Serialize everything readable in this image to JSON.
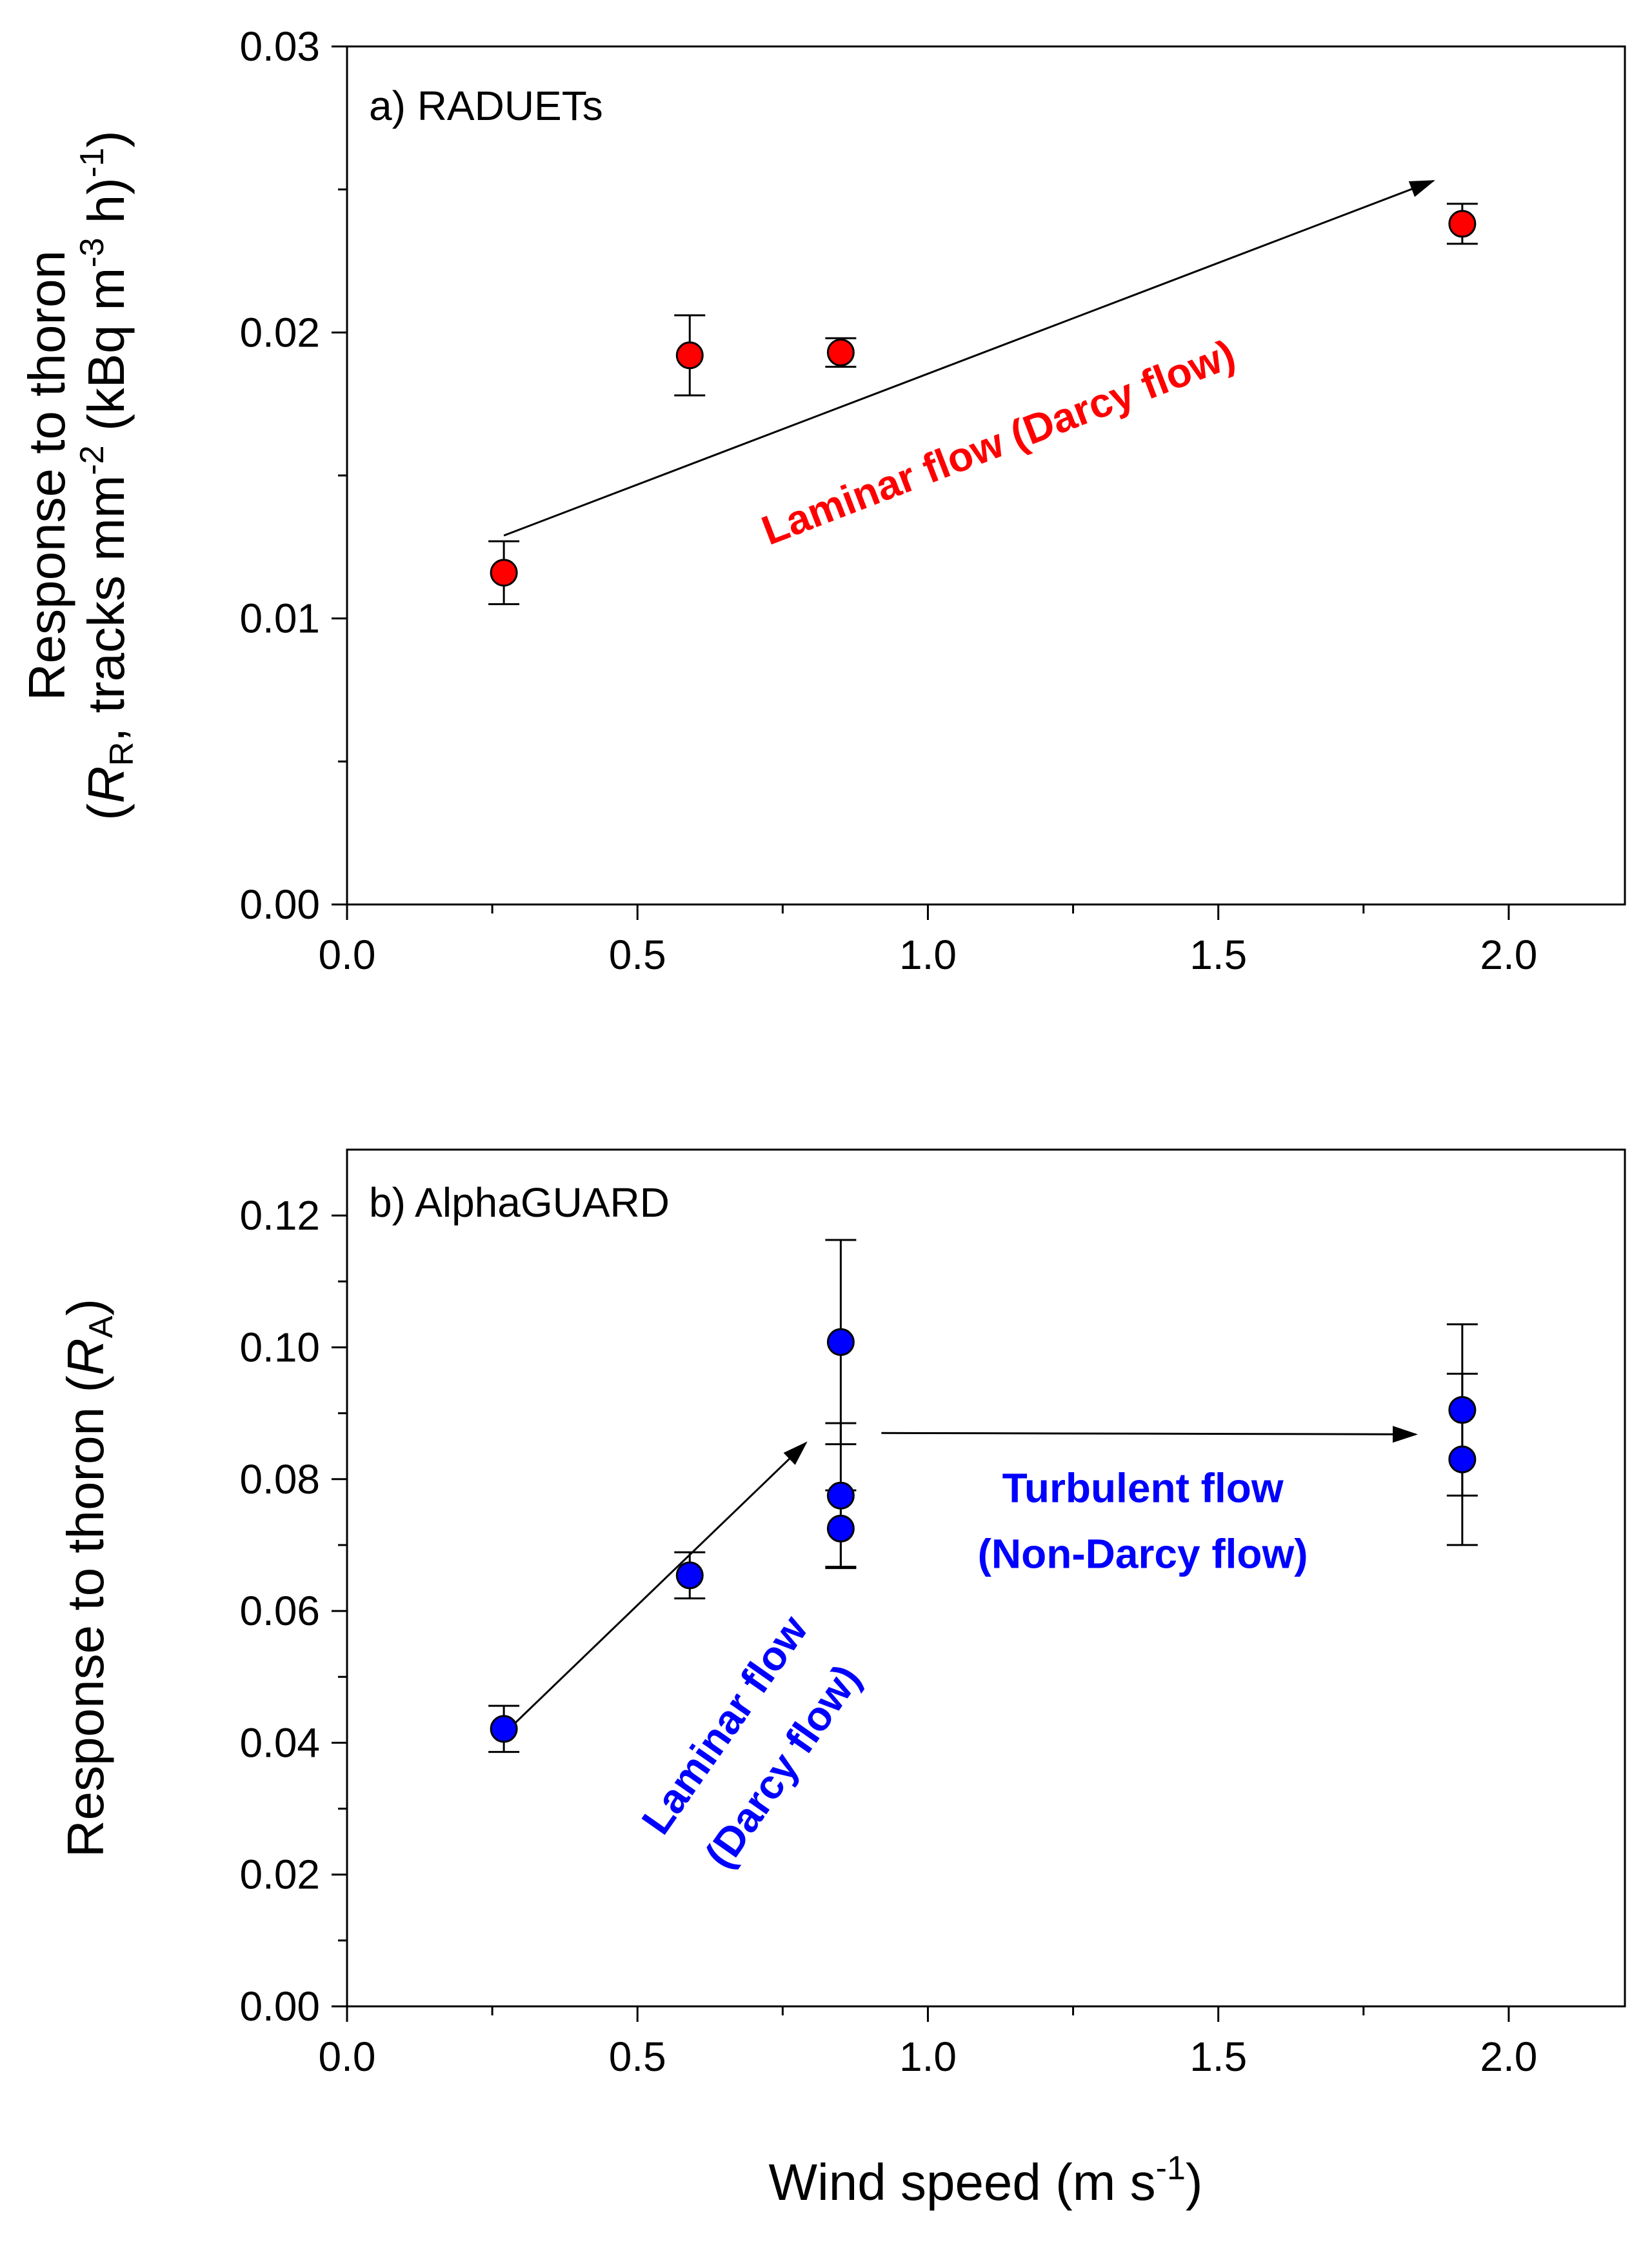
{
  "chart_data": [
    {
      "type": "scatter",
      "panel_label": "a) RADUETs",
      "xlabel": "",
      "ylabel_line1": "Response to thoron",
      "ylabel_line2": {
        "open": "(",
        "R": "R",
        "R_sub": "R",
        "mid": ", tracks mm",
        "sup1": "-2",
        "mid2": " (kBq m",
        "sup2": "-3",
        "mid3": " h)",
        "sup3": "-1",
        "close": ")"
      },
      "xlim": [
        0.0,
        2.2
      ],
      "ylim": [
        0.0,
        0.03
      ],
      "xticks": [
        0.0,
        0.5,
        1.0,
        1.5,
        2.0
      ],
      "xtick_labels": [
        "0.0",
        "0.5",
        "1.0",
        "1.5",
        "2.0"
      ],
      "yticks": [
        0.0,
        0.01,
        0.02,
        0.03
      ],
      "ytick_labels": [
        "0.00",
        "0.01",
        "0.02",
        "0.03"
      ],
      "marker_color": "#ff0000",
      "points": [
        {
          "x": 0.27,
          "y": 0.0116,
          "err": 0.0011
        },
        {
          "x": 0.59,
          "y": 0.0192,
          "err": 0.0014
        },
        {
          "x": 0.85,
          "y": 0.0193,
          "err": 0.0005
        },
        {
          "x": 1.92,
          "y": 0.0238,
          "err": 0.0007
        }
      ],
      "arrows": [
        {
          "from": [
            0.27,
            0.0129
          ],
          "to": [
            1.87,
            0.0253
          ]
        }
      ],
      "annotations": [
        {
          "text": "Laminar flow (Darcy flow)",
          "x": 1.13,
          "y": 0.0157,
          "rotate": -21,
          "color": "#ff0000"
        }
      ]
    },
    {
      "type": "scatter",
      "panel_label": "b) AlphaGUARD",
      "xlabel": "Wind speed (m s",
      "xlabel_sup": "-1",
      "xlabel_close": ")",
      "ylabel_line1": "Response to thoron (",
      "ylabel_R": "R",
      "ylabel_sub": "A",
      "ylabel_close": ")",
      "xlim": [
        0.0,
        2.2
      ],
      "ylim": [
        0.0,
        0.13
      ],
      "xticks": [
        0.0,
        0.5,
        1.0,
        1.5,
        2.0
      ],
      "xtick_labels": [
        "0.0",
        "0.5",
        "1.0",
        "1.5",
        "2.0"
      ],
      "yticks": [
        0.0,
        0.02,
        0.04,
        0.06,
        0.08,
        0.1,
        0.12
      ],
      "ytick_labels": [
        "0.00",
        "0.02",
        "0.04",
        "0.06",
        "0.08",
        "0.10",
        "0.12"
      ],
      "marker_color": "#0000ff",
      "points": [
        {
          "x": 0.27,
          "y": 0.0421,
          "err": 0.0035
        },
        {
          "x": 0.59,
          "y": 0.0654,
          "err": 0.0035
        },
        {
          "x": 0.85,
          "y": 0.1008,
          "err": 0.0155
        },
        {
          "x": 0.85,
          "y": 0.0775,
          "err": 0.011
        },
        {
          "x": 0.85,
          "y": 0.0725,
          "err": 0.0058
        },
        {
          "x": 1.92,
          "y": 0.0905,
          "err": 0.013
        },
        {
          "x": 1.92,
          "y": 0.083,
          "err": 0.013
        }
      ],
      "arrows": [
        {
          "from": [
            0.28,
            0.0422
          ],
          "to": [
            0.79,
            0.0855
          ]
        },
        {
          "from": [
            0.92,
            0.087
          ],
          "to": [
            1.84,
            0.0868
          ]
        }
      ],
      "annotations": [
        {
          "text": "Laminar flow",
          "x": 0.67,
          "y": 0.0415,
          "rotate": -55,
          "color": "#0000ff"
        },
        {
          "text": "(Darcy flow)",
          "x": 0.77,
          "y": 0.0352,
          "rotate": -55,
          "color": "#0000ff"
        },
        {
          "text": "Turbulent flow",
          "x": 1.37,
          "y": 0.0765,
          "rotate": 0,
          "color": "#0000ff"
        },
        {
          "text": "(Non-Darcy flow)",
          "x": 1.37,
          "y": 0.0665,
          "rotate": 0,
          "color": "#0000ff"
        }
      ]
    }
  ]
}
